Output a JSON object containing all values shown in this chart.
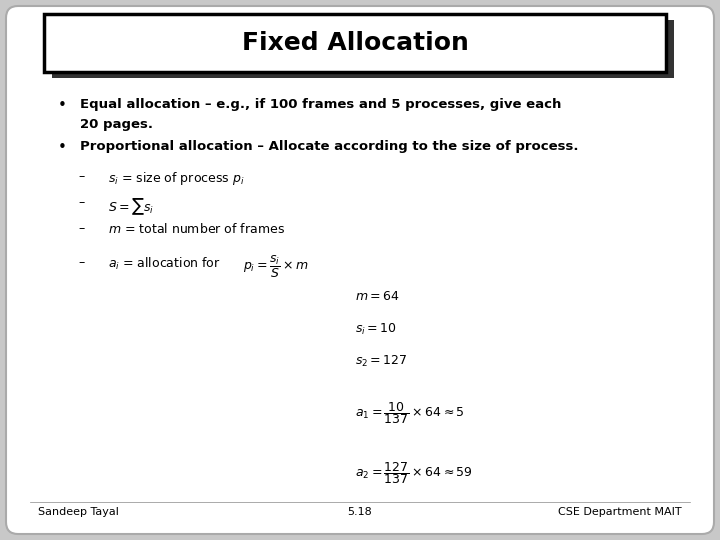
{
  "title": "Fixed Allocation",
  "slide_bg": "#c8c8c8",
  "title_box_color": "#ffffff",
  "title_box_border": "#000000",
  "title_shadow_color": "#333333",
  "bullet1_line1": "Equal allocation – e.g., if 100 frames and 5 processes, give each",
  "bullet1_line2": "20 pages.",
  "bullet2": "Proportional allocation – Allocate according to the size of process.",
  "sub1": "$s_i$ = size of process $p_i$",
  "sub2": "$S = \\sum s_i$",
  "sub3": "$m$ = total number of frames",
  "sub4_label": "$a_i$ = allocation for",
  "sub4_formula": "$p_i = \\dfrac{s_i}{S} \\times m$",
  "eq1": "$m = 64$",
  "eq2": "$s_i = 10$",
  "eq3": "$s_2 = 127$",
  "eq4": "$a_1 = \\dfrac{10}{137} \\times 64 \\approx 5$",
  "eq5": "$a_2 = \\dfrac{127}{137} \\times 64 \\approx 59$",
  "footer_left": "Sandeep Tayal",
  "footer_center": "5.18",
  "footer_right": "CSE Department MAIT",
  "text_color": "#000000",
  "footer_color": "#000000"
}
